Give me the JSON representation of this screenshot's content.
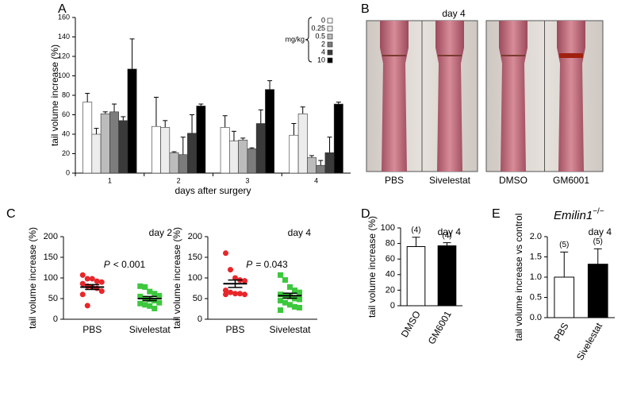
{
  "chart_data": [
    {
      "type": "grouped_bar",
      "panel": "A",
      "ylabel": "tail volume increase (%)",
      "xlabel": "days after surgery",
      "categories": [
        "1",
        "2",
        "3",
        "4"
      ],
      "legend_title": "mg/kg",
      "ylim": [
        0,
        160
      ],
      "yticks": [
        0,
        20,
        40,
        60,
        80,
        100,
        120,
        140,
        160
      ],
      "series": [
        {
          "name": "0",
          "color": "#ffffff",
          "values": [
            73,
            48,
            47,
            39
          ],
          "errors": [
            9,
            30,
            12,
            12
          ]
        },
        {
          "name": "0.25",
          "color": "#ececec",
          "values": [
            40,
            47,
            33,
            61
          ],
          "errors": [
            6,
            7,
            10,
            7
          ]
        },
        {
          "name": "0.5",
          "color": "#bcbcbc",
          "values": [
            61,
            21,
            34,
            16
          ],
          "errors": [
            2,
            1,
            2,
            2
          ]
        },
        {
          "name": "2",
          "color": "#7c7c7c",
          "values": [
            63,
            19,
            25,
            8
          ],
          "errors": [
            8,
            18,
            1,
            5
          ]
        },
        {
          "name": "4",
          "color": "#3a3a3a",
          "values": [
            54,
            41,
            51,
            21
          ],
          "errors": [
            4,
            19,
            14,
            16
          ]
        },
        {
          "name": "10",
          "color": "#000000",
          "values": [
            107,
            69,
            86,
            71
          ],
          "errors": [
            31,
            2,
            9,
            2
          ]
        }
      ]
    },
    {
      "type": "image",
      "panel": "B",
      "title": "day 4",
      "labels": [
        "PBS",
        "Sivelestat",
        "DMSO",
        "GM6001"
      ]
    },
    {
      "type": "dot",
      "panel": "C",
      "title": "day 2",
      "ylabel": "tail volume increase (%)",
      "annotation_italic": "P",
      "annotation": "< 0.001",
      "categories": [
        "PBS",
        "Sivelestat"
      ],
      "ylim": [
        0,
        200
      ],
      "yticks": [
        0,
        50,
        100,
        150,
        200
      ],
      "groups": [
        {
          "color": "#e8262a",
          "marker": "circle",
          "values": [
            107,
            98,
            98,
            92,
            90,
            86,
            80,
            78,
            75,
            68,
            60,
            33
          ],
          "mean": 78,
          "sem": 6
        },
        {
          "color": "#3cc83c",
          "marker": "square",
          "values": [
            80,
            78,
            67,
            62,
            57,
            55,
            50,
            48,
            45,
            40,
            38,
            35,
            32,
            26
          ],
          "mean": 50,
          "sem": 5
        }
      ]
    },
    {
      "type": "dot",
      "title": "day 4",
      "ylabel": "tail volume increase (%)",
      "annotation_italic": "P",
      "annotation": "= 0.043",
      "categories": [
        "PBS",
        "Sivelestat"
      ],
      "ylim": [
        0,
        200
      ],
      "yticks": [
        0,
        50,
        100,
        150,
        200
      ],
      "groups": [
        {
          "color": "#e8262a",
          "marker": "circle",
          "values": [
            160,
            120,
            100,
            95,
            93,
            70,
            65,
            62,
            62,
            60,
            60
          ],
          "mean": 86,
          "sem": 9
        },
        {
          "color": "#3cc83c",
          "marker": "square",
          "values": [
            107,
            95,
            78,
            70,
            65,
            60,
            58,
            55,
            50,
            48,
            45,
            40,
            35,
            30,
            28,
            22
          ],
          "mean": 57,
          "sem": 6
        }
      ]
    },
    {
      "type": "bar",
      "panel": "D",
      "title": "day 4",
      "ylabel": "tail volume increase (%)",
      "categories": [
        "DMSO",
        "GM6001"
      ],
      "values": [
        76,
        77
      ],
      "errors": [
        12,
        4
      ],
      "colors": [
        "#ffffff",
        "#000000"
      ],
      "n_labels": [
        "(4)",
        "(4)"
      ],
      "ylim": [
        0,
        100
      ],
      "yticks": [
        0,
        20,
        40,
        60,
        80,
        100
      ]
    },
    {
      "type": "bar",
      "panel": "E",
      "title": "Emilin1",
      "title_sup": "−/−",
      "subtitle": "day 4",
      "ylabel": "tail volume increase vs control",
      "categories": [
        "PBS",
        "Sivelestat"
      ],
      "values": [
        1.0,
        1.32
      ],
      "errors": [
        0.62,
        0.38
      ],
      "colors": [
        "#ffffff",
        "#000000"
      ],
      "n_labels": [
        "(5)",
        "(5)"
      ],
      "ylim": [
        0,
        2
      ],
      "yticks": [
        {
          "value": 0,
          "label": "0.0"
        },
        0.5,
        {
          "value": 1,
          "label": "1.0"
        },
        1.5,
        {
          "value": 2,
          "label": "2.0"
        }
      ]
    }
  ]
}
